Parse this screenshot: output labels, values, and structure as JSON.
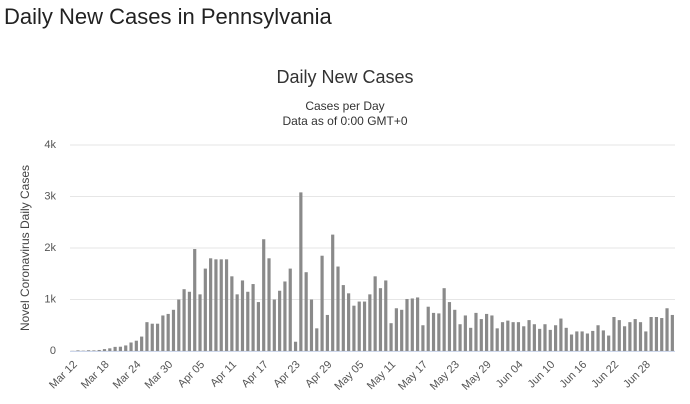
{
  "page_title": "Daily New Cases in Pennsylvania",
  "chart_data": {
    "type": "bar",
    "title": "Daily New Cases",
    "subtitle": [
      "Cases per Day",
      "Data as of 0:00 GMT+0"
    ],
    "y_label": "Novel Coronavirus Daily Cases",
    "color": "#8a8a8a",
    "grid": true,
    "ylim": [
      0,
      4000
    ],
    "yticks": [
      0,
      {
        "value": 1000,
        "label": "1k"
      },
      {
        "value": 2000,
        "label": "2k"
      },
      {
        "value": 3000,
        "label": "3k"
      },
      {
        "value": 4000,
        "label": "4k"
      }
    ],
    "categories": [
      "Mar 12",
      null,
      null,
      null,
      null,
      null,
      "Mar 18",
      null,
      null,
      null,
      null,
      null,
      "Mar 24",
      null,
      null,
      null,
      null,
      null,
      "Mar 30",
      null,
      null,
      null,
      null,
      null,
      "Apr 05",
      null,
      null,
      null,
      null,
      null,
      "Apr 11",
      null,
      null,
      null,
      null,
      null,
      "Apr 17",
      null,
      null,
      null,
      null,
      null,
      "Apr 23",
      null,
      null,
      null,
      null,
      null,
      "Apr 29",
      null,
      null,
      null,
      null,
      null,
      "May 05",
      null,
      null,
      null,
      null,
      null,
      "May 11",
      null,
      null,
      null,
      null,
      null,
      "May 17",
      null,
      null,
      null,
      null,
      null,
      "May 23",
      null,
      null,
      null,
      null,
      null,
      "May 29",
      null,
      null,
      null,
      null,
      null,
      "Jun 04",
      null,
      null,
      null,
      null,
      null,
      "Jun 10",
      null,
      null,
      null,
      null,
      null,
      "Jun 16",
      null,
      null,
      null,
      null,
      null,
      "Jun 22",
      null,
      null,
      null,
      null,
      null,
      "Jun 28",
      null,
      null,
      null,
      null,
      null
    ],
    "values": [
      2,
      12,
      6,
      14,
      12,
      20,
      37,
      52,
      80,
      83,
      108,
      165,
      200,
      280,
      560,
      530,
      530,
      690,
      720,
      800,
      1000,
      1200,
      1150,
      1980,
      1100,
      1600,
      1800,
      1780,
      1780,
      1780,
      1450,
      1100,
      1370,
      1150,
      1300,
      950,
      2170,
      1800,
      1000,
      1170,
      1350,
      1600,
      180,
      3080,
      1530,
      1000,
      440,
      1850,
      700,
      2260,
      1640,
      1280,
      1120,
      880,
      960,
      960,
      1100,
      1450,
      1220,
      1370,
      540,
      830,
      800,
      1010,
      1020,
      1040,
      500,
      860,
      740,
      730,
      1220,
      950,
      800,
      520,
      690,
      450,
      740,
      620,
      720,
      690,
      440,
      560,
      590,
      560,
      560,
      480,
      600,
      520,
      430,
      520,
      410,
      500,
      630,
      450,
      320,
      380,
      380,
      340,
      390,
      500,
      400,
      300,
      660,
      600,
      480,
      560,
      620,
      560,
      380,
      660,
      660,
      640,
      830,
      700
    ]
  }
}
